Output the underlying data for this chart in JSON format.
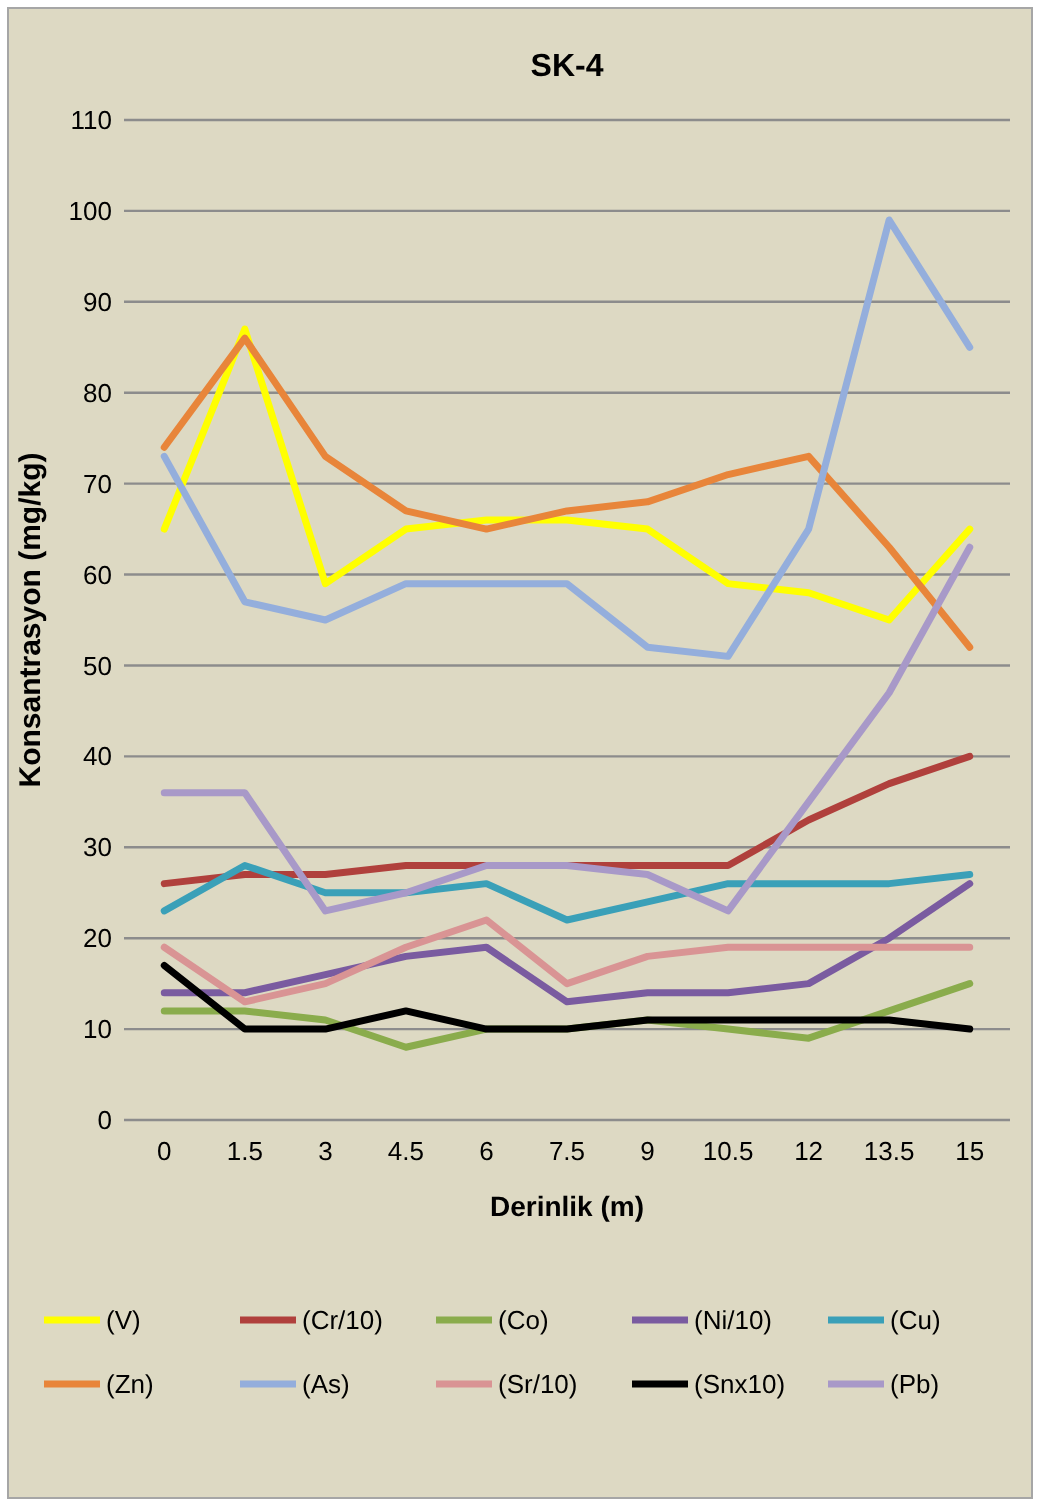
{
  "chart_data": {
    "type": "line",
    "title": "SK-4",
    "xlabel": "Derinlik (m)",
    "ylabel": "Konsantrasyon (mg/kg)",
    "categories": [
      "0",
      "1.5",
      "3",
      "4.5",
      "6",
      "7.5",
      "9",
      "10.5",
      "12",
      "13.5",
      "15"
    ],
    "ylim": [
      0,
      110
    ],
    "yticks": [
      0,
      10,
      20,
      30,
      40,
      50,
      60,
      70,
      80,
      90,
      100,
      110
    ],
    "grid": "y",
    "legend": "bottom",
    "marker": "none",
    "line_style": "solid",
    "series": [
      {
        "name": "(V)",
        "color": "#ffff00",
        "values": [
          65,
          87,
          59,
          65,
          66,
          66,
          65,
          59,
          58,
          55,
          65
        ]
      },
      {
        "name": "(Cr/10)",
        "color": "#b0403c",
        "values": [
          26,
          27,
          27,
          28,
          28,
          28,
          28,
          28,
          33,
          37,
          40
        ]
      },
      {
        "name": "(Co)",
        "color": "#8aac4c",
        "values": [
          12,
          12,
          11,
          8,
          10,
          10,
          11,
          10,
          9,
          12,
          15
        ]
      },
      {
        "name": "(Ni/10)",
        "color": "#7a5ba0",
        "values": [
          14,
          14,
          16,
          18,
          19,
          13,
          14,
          14,
          15,
          20,
          26
        ]
      },
      {
        "name": "(Cu)",
        "color": "#3aa0b8",
        "values": [
          23,
          28,
          25,
          25,
          26,
          22,
          24,
          26,
          26,
          26,
          27
        ]
      },
      {
        "name": "(Zn)",
        "color": "#e8853a",
        "values": [
          74,
          86,
          73,
          67,
          65,
          67,
          68,
          71,
          73,
          63,
          52
        ]
      },
      {
        "name": "(As)",
        "color": "#94aedc",
        "values": [
          73,
          57,
          55,
          59,
          59,
          59,
          52,
          51,
          65,
          99,
          85
        ]
      },
      {
        "name": "(Sr/10)",
        "color": "#d99494",
        "values": [
          19,
          13,
          15,
          19,
          22,
          15,
          18,
          19,
          19,
          19,
          19
        ]
      },
      {
        "name": "(Snx10)",
        "color": "#000000",
        "values": [
          17,
          10,
          10,
          12,
          10,
          10,
          11,
          11,
          11,
          11,
          10
        ]
      },
      {
        "name": "(Pb)",
        "color": "#a899c8",
        "values": [
          36,
          36,
          23,
          25,
          28,
          28,
          27,
          23,
          35,
          47,
          63
        ]
      }
    ]
  }
}
